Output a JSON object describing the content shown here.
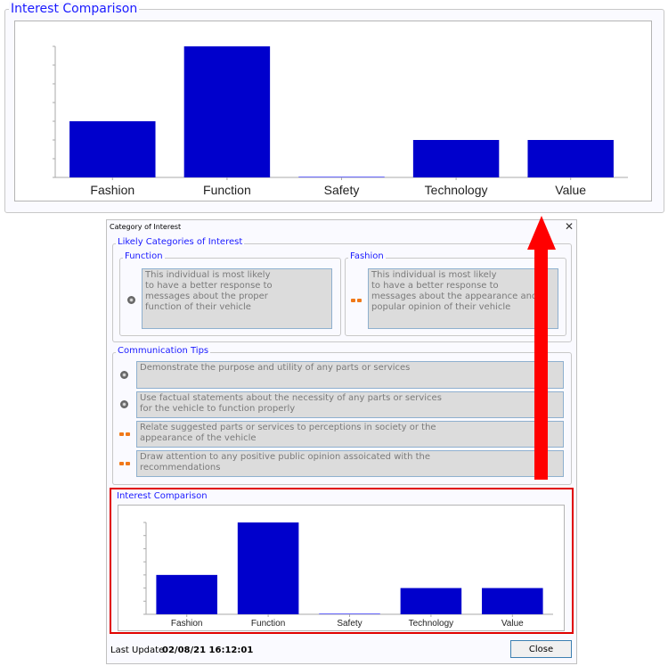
{
  "zoomed_panel": {
    "title": "Interest Comparison"
  },
  "dialog": {
    "title": "Category of Interest",
    "close_icon": "close-icon",
    "likely": {
      "title": "Likely Categories of Interest",
      "cards": [
        {
          "title": "Function",
          "icon": "gear-icon",
          "text": "This individual is most likely\nto have a better response to\nmessages about the proper\nfunction of their vehicle"
        },
        {
          "title": "Fashion",
          "icon": "sunglasses-icon",
          "text": "This individual is most likely\nto have a better response to\nmessages about the appearance and\npopular opinion of their vehicle"
        }
      ]
    },
    "tips": {
      "title": "Communication Tips",
      "items": [
        {
          "icon": "gear-icon",
          "text": "Demonstrate the purpose and utility of any parts or services"
        },
        {
          "icon": "gear-icon",
          "text": "Use factual statements about the necessity of any parts or services\nfor the vehicle to function properly"
        },
        {
          "icon": "sunglasses-icon",
          "text": "Relate suggested parts or services to perceptions in society or the\nappearance of the vehicle"
        },
        {
          "icon": "sunglasses-icon",
          "text": "Draw attention to any positive public opinion assoicated with the\nrecommendations"
        }
      ]
    },
    "comparison": {
      "title": "Interest Comparison"
    },
    "footer": {
      "last_update_label": "Last Update",
      "last_update_value": "02/08/21 16:12:01",
      "close_label": "Close"
    }
  },
  "colors": {
    "bar": "#0000cc",
    "legend": "#1a1aff",
    "highlight": "#e00000",
    "arrow": "#ff0000"
  },
  "chart_data": {
    "type": "bar",
    "title": "Interest Comparison",
    "categories": [
      "Fashion",
      "Function",
      "Safety",
      "Technology",
      "Value"
    ],
    "values": [
      3,
      7,
      0,
      2,
      2
    ],
    "ylim": [
      0,
      7
    ],
    "y_ticks": 7,
    "y_tick_labels": false,
    "grid": false
  }
}
